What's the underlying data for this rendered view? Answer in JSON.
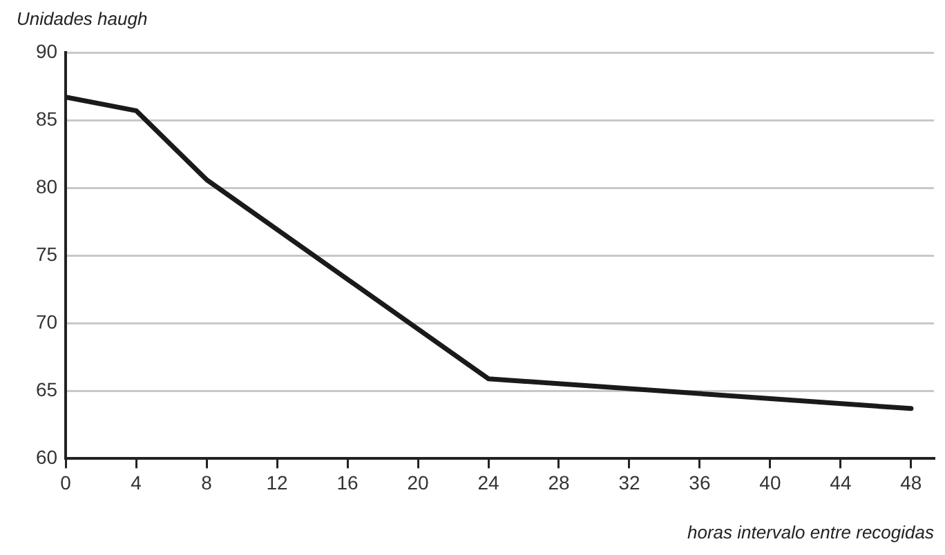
{
  "chart_data": {
    "type": "line",
    "ylabel": "Unidades haugh",
    "xlabel": "horas intervalo entre recogidas",
    "x": [
      0,
      4,
      8,
      24,
      48
    ],
    "series": [
      {
        "color": "#1a1a1a",
        "values": [
          86.7,
          85.7,
          80.6,
          65.9,
          63.7
        ]
      }
    ],
    "xlim": [
      0,
      49.3
    ],
    "xticks": [
      0,
      4,
      8,
      12,
      16,
      20,
      24,
      28,
      32,
      36,
      40,
      44,
      48
    ],
    "ylim": [
      60,
      90
    ],
    "yticks": [
      60,
      65,
      70,
      75,
      80,
      85,
      90
    ],
    "grid": "y",
    "legend": false,
    "marker": "none",
    "line_style": "solid"
  }
}
